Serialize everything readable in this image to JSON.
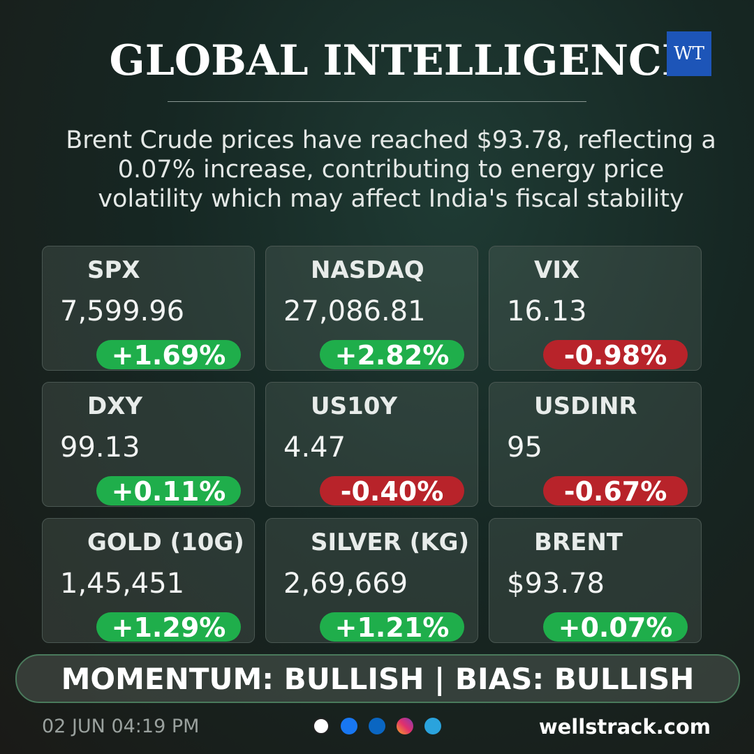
{
  "header": {
    "title": "GLOBAL INTELLIGENCE",
    "logo": "WT"
  },
  "summary": [
    "Brent Crude prices have reached $93.78, reflecting a",
    "0.07% increase, contributing to energy price",
    "volatility which may affect India's fiscal stability"
  ],
  "cards": [
    {
      "name": "SPX",
      "value": "7,599.96",
      "change": "+1.69%",
      "color": "#1fae4b"
    },
    {
      "name": "NASDAQ",
      "value": "27,086.81",
      "change": "+2.82%",
      "color": "#1fae4b"
    },
    {
      "name": "VIX",
      "value": "16.13",
      "change": "-0.98%",
      "color": "#b8232a"
    },
    {
      "name": "DXY",
      "value": "99.13",
      "change": "+0.11%",
      "color": "#1fae4b"
    },
    {
      "name": "US10Y",
      "value": "4.47",
      "change": "-0.40%",
      "color": "#b8232a"
    },
    {
      "name": "USDINR",
      "value": "95",
      "change": "-0.67%",
      "color": "#b8232a"
    },
    {
      "name": "GOLD (10G)",
      "value": "1,45,451",
      "change": "+1.29%",
      "color": "#1fae4b"
    },
    {
      "name": "SILVER (KG)",
      "value": "2,69,669",
      "change": "+1.21%",
      "color": "#1fae4b"
    },
    {
      "name": "BRENT",
      "value": "$93.78",
      "change": "+0.07%",
      "color": "#1fae4b"
    }
  ],
  "banner": "MOMENTUM: BULLISH | BIAS: BULLISH",
  "footer": {
    "timestamp": "02 JUN 04:19 PM",
    "website": "wellstrack.com"
  }
}
